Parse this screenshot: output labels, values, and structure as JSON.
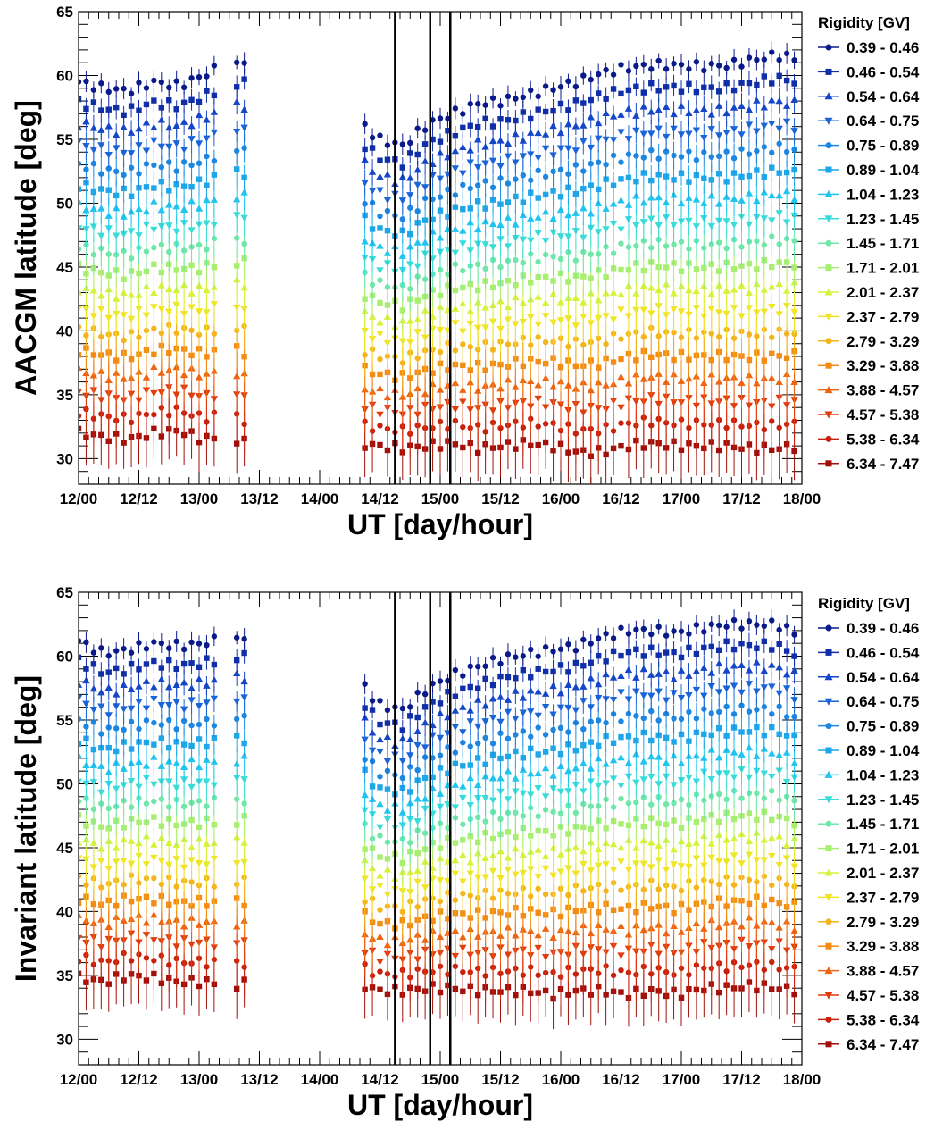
{
  "chart_data": [
    {
      "type": "scatter",
      "ylabel": "AACGM latitude [deg]",
      "xlabel": "UT [day/hour]",
      "ylim": [
        28,
        65
      ],
      "yticks": [
        30,
        35,
        40,
        45,
        50,
        55,
        60,
        65
      ],
      "x_tick_labels": [
        "12/00",
        "12/12",
        "13/00",
        "13/12",
        "14/00",
        "14/12",
        "15/00",
        "15/12",
        "16/00",
        "16/12",
        "17/00",
        "17/12",
        "18/00"
      ],
      "vlines_hours": [
        63,
        70,
        74
      ],
      "series_top_values": [
        59.5,
        59.0,
        58.8,
        59.5,
        59.2,
        60.0,
        61.0,
        61.2,
        58.3,
        58.2,
        58.0,
        57.0,
        55.0,
        54.5,
        56.2,
        57.0,
        57.8,
        58.0,
        58.5,
        59.0,
        59.5,
        60.2,
        60.6,
        60.8,
        60.8,
        60.7,
        60.8,
        61.2,
        61.6,
        61.2
      ],
      "series_bottom_values": [
        32.0,
        31.7,
        31.5,
        32.0,
        32.2,
        31.5,
        31.8,
        31.0,
        31.2,
        31.0,
        31.0,
        31.2,
        31.0,
        30.8,
        31.0,
        31.2,
        30.8,
        31.0,
        31.2,
        31.0,
        30.5,
        30.5,
        31.0,
        31.2,
        31.0,
        31.0,
        31.0,
        30.8,
        30.8,
        31.0
      ]
    },
    {
      "type": "scatter",
      "ylabel": "Invariant latitude [deg]",
      "xlabel": "UT [day/hour]",
      "ylim": [
        28,
        65
      ],
      "yticks": [
        30,
        35,
        40,
        45,
        50,
        55,
        60,
        65
      ],
      "x_tick_labels": [
        "12/00",
        "12/12",
        "13/00",
        "13/12",
        "14/00",
        "14/12",
        "15/00",
        "15/12",
        "16/00",
        "16/12",
        "17/00",
        "17/12",
        "18/00"
      ],
      "vlines_hours": [
        63,
        70,
        74
      ],
      "series_top_values": [
        61.2,
        60.2,
        60.5,
        61.0,
        60.8,
        61.0,
        61.5,
        61.5,
        61.8,
        61.2,
        60.0,
        59.0,
        56.2,
        55.8,
        57.5,
        58.5,
        59.2,
        59.8,
        60.2,
        60.5,
        60.8,
        61.5,
        62.0,
        62.0,
        61.8,
        62.2,
        62.5,
        62.5,
        62.5,
        61.5
      ],
      "series_bottom_values": [
        34.8,
        34.5,
        35.0,
        34.8,
        34.5,
        34.5,
        34.2,
        34.5,
        35.5,
        35.3,
        35.0,
        34.5,
        33.8,
        33.8,
        34.0,
        34.0,
        33.8,
        33.8,
        33.8,
        33.5,
        33.8,
        33.8,
        33.5,
        33.8,
        33.5,
        34.0,
        34.0,
        34.2,
        34.0,
        33.8
      ]
    }
  ],
  "legend": {
    "title": "Rigidity [GV]",
    "entries": [
      {
        "label": "0.39 - 0.46",
        "color": "#0b1a8a",
        "marker": "circle"
      },
      {
        "label": "0.46 - 0.54",
        "color": "#0f2ea8",
        "marker": "square"
      },
      {
        "label": "0.54 - 0.64",
        "color": "#1546c8",
        "marker": "triangle-up"
      },
      {
        "label": "0.64 - 0.75",
        "color": "#1a64d8",
        "marker": "triangle-down"
      },
      {
        "label": "0.75 - 0.89",
        "color": "#1c86e0",
        "marker": "circle"
      },
      {
        "label": "0.89 - 1.04",
        "color": "#1ea6e8",
        "marker": "square"
      },
      {
        "label": "1.04 - 1.23",
        "color": "#20c4ee",
        "marker": "triangle-up"
      },
      {
        "label": "1.23 - 1.45",
        "color": "#3adcd8",
        "marker": "triangle-down"
      },
      {
        "label": "1.45 - 1.71",
        "color": "#70e6a8",
        "marker": "circle"
      },
      {
        "label": "1.71 - 2.01",
        "color": "#a8ee70",
        "marker": "square"
      },
      {
        "label": "2.01 - 2.37",
        "color": "#d8f23c",
        "marker": "triangle-up"
      },
      {
        "label": "2.37 - 2.79",
        "color": "#f2e424",
        "marker": "triangle-down"
      },
      {
        "label": "2.79 - 3.29",
        "color": "#f4b41c",
        "marker": "circle"
      },
      {
        "label": "3.29 - 3.88",
        "color": "#f28c14",
        "marker": "square"
      },
      {
        "label": "3.88 - 4.57",
        "color": "#ee6410",
        "marker": "triangle-up"
      },
      {
        "label": "4.57 - 5.38",
        "color": "#e03c0e",
        "marker": "triangle-down"
      },
      {
        "label": "5.38 - 6.34",
        "color": "#c8200c",
        "marker": "circle"
      },
      {
        "label": "6.34 - 7.47",
        "color": "#a00f0a",
        "marker": "square"
      }
    ]
  }
}
